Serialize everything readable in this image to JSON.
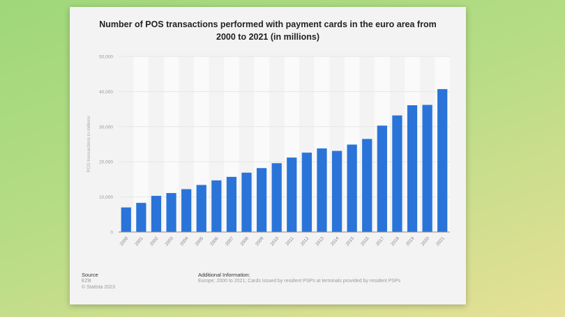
{
  "chart_data": {
    "type": "bar",
    "title": "Number of POS transactions performed with payment cards in the euro area from 2000 to 2021 (in millions)",
    "title_lines": [
      "Number of POS transactions performed with payment cards in the euro area from",
      "2000 to 2021 (in millions)"
    ],
    "xlabel": "",
    "ylabel": "POS transactions in millions",
    "ylim": [
      0,
      50000
    ],
    "yticks": [
      0,
      10000,
      20000,
      30000,
      40000,
      50000
    ],
    "ytick_labels": [
      "0",
      "10,000",
      "20,000",
      "30,000",
      "40,000",
      "50,000"
    ],
    "grid": true,
    "bar_color": "#2a74d9",
    "categories": [
      "2000",
      "2001",
      "2002",
      "2003",
      "2004",
      "2005",
      "2006",
      "2007",
      "2008",
      "2009",
      "2010",
      "2011",
      "2012",
      "2013",
      "2014",
      "2015",
      "2016",
      "2017",
      "2018",
      "2019",
      "2020",
      "2021"
    ],
    "values": [
      7000,
      8300,
      10300,
      11100,
      12200,
      13400,
      14700,
      15700,
      16900,
      18200,
      19600,
      21200,
      22600,
      23800,
      23100,
      24900,
      26500,
      30300,
      33200,
      36100,
      36200,
      40700
    ]
  },
  "footer": {
    "source_label": "Source",
    "source": "EZB",
    "copyright": "© Statista 2023",
    "info_label": "Additional Information:",
    "info": "Europe; 2000 to 2021; Cards issued by resident PSPs at terminals provided by resident PSPs"
  }
}
